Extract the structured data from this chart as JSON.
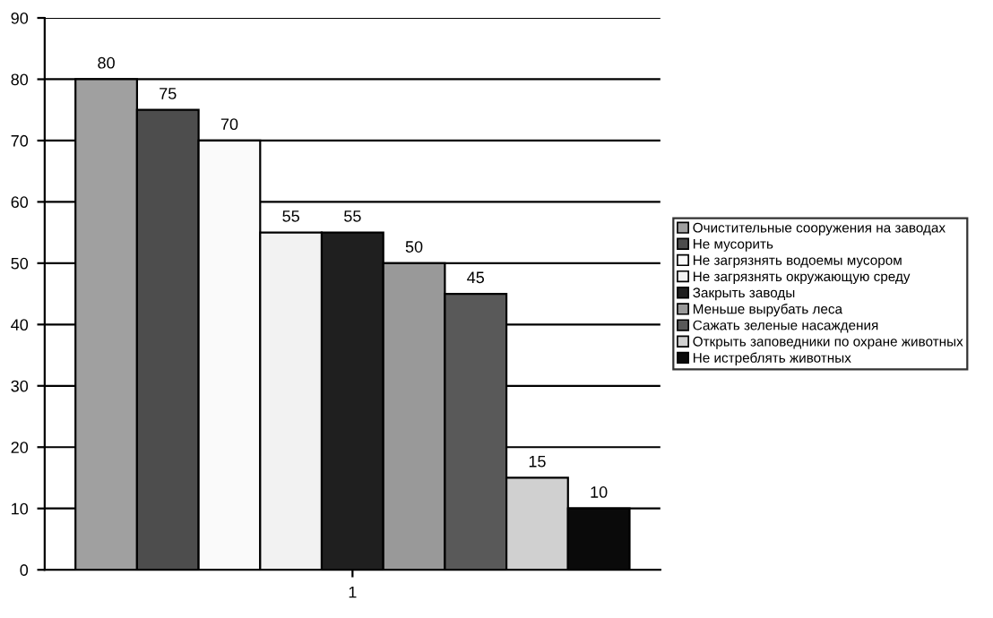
{
  "chart_data": {
    "type": "bar",
    "categories": [
      "1"
    ],
    "series": [
      {
        "name": "Очистительные сооружения на заводах",
        "color": "#a0a0a0",
        "values": [
          80
        ]
      },
      {
        "name": "Не мусорить",
        "color": "#4d4d4d",
        "values": [
          75
        ]
      },
      {
        "name": "Не загрязнять водоемы мусором",
        "color": "#fafafa",
        "values": [
          70
        ]
      },
      {
        "name": "Не загрязнять окружающую среду",
        "color": "#f2f2f2",
        "values": [
          55
        ]
      },
      {
        "name": "Закрыть заводы",
        "color": "#1f1f1f",
        "values": [
          55
        ]
      },
      {
        "name": "Меньше вырубать леса",
        "color": "#999999",
        "values": [
          50
        ]
      },
      {
        "name": "Сажать зеленые насаждения",
        "color": "#595959",
        "values": [
          45
        ]
      },
      {
        "name": "Открыть заповедники по охране животных",
        "color": "#d0d0d0",
        "values": [
          15
        ]
      },
      {
        "name": "Не истреблять животных",
        "color": "#0a0a0a",
        "values": [
          10
        ]
      }
    ],
    "ylim": [
      0,
      90
    ],
    "yticks": [
      0,
      10,
      20,
      30,
      40,
      50,
      60,
      70,
      80,
      90
    ],
    "grid": "y",
    "legend": "right",
    "data_labels": true
  }
}
